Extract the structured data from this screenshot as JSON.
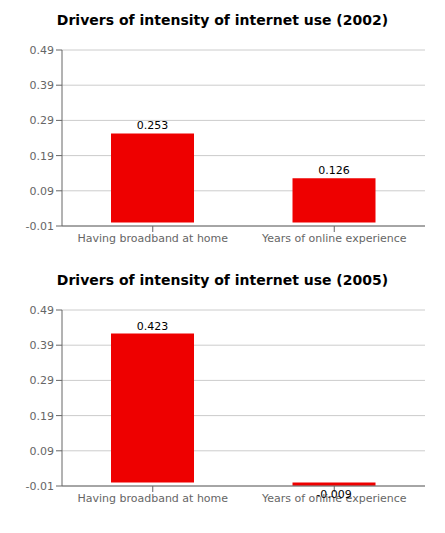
{
  "chart_data": [
    {
      "type": "bar",
      "title": "Drivers of intensity of internet use (2002)",
      "categories": [
        "Having broadband at home",
        "Years of online experience"
      ],
      "values": [
        0.253,
        0.126
      ],
      "color": "#ee0000",
      "ylim": [
        -0.01,
        0.49
      ],
      "yticks": [
        -0.01,
        0.09,
        0.19,
        0.29,
        0.39,
        0.49
      ],
      "grid": true,
      "data_labels": true
    },
    {
      "type": "bar",
      "title": "Drivers of intensity of internet use (2005)",
      "categories": [
        "Having broadband at home",
        "Years of online experience"
      ],
      "values": [
        0.423,
        -0.009
      ],
      "color": "#ee0000",
      "ylim": [
        -0.01,
        0.49
      ],
      "yticks": [
        -0.01,
        0.09,
        0.19,
        0.29,
        0.39,
        0.49
      ],
      "grid": true,
      "data_labels": true
    }
  ]
}
